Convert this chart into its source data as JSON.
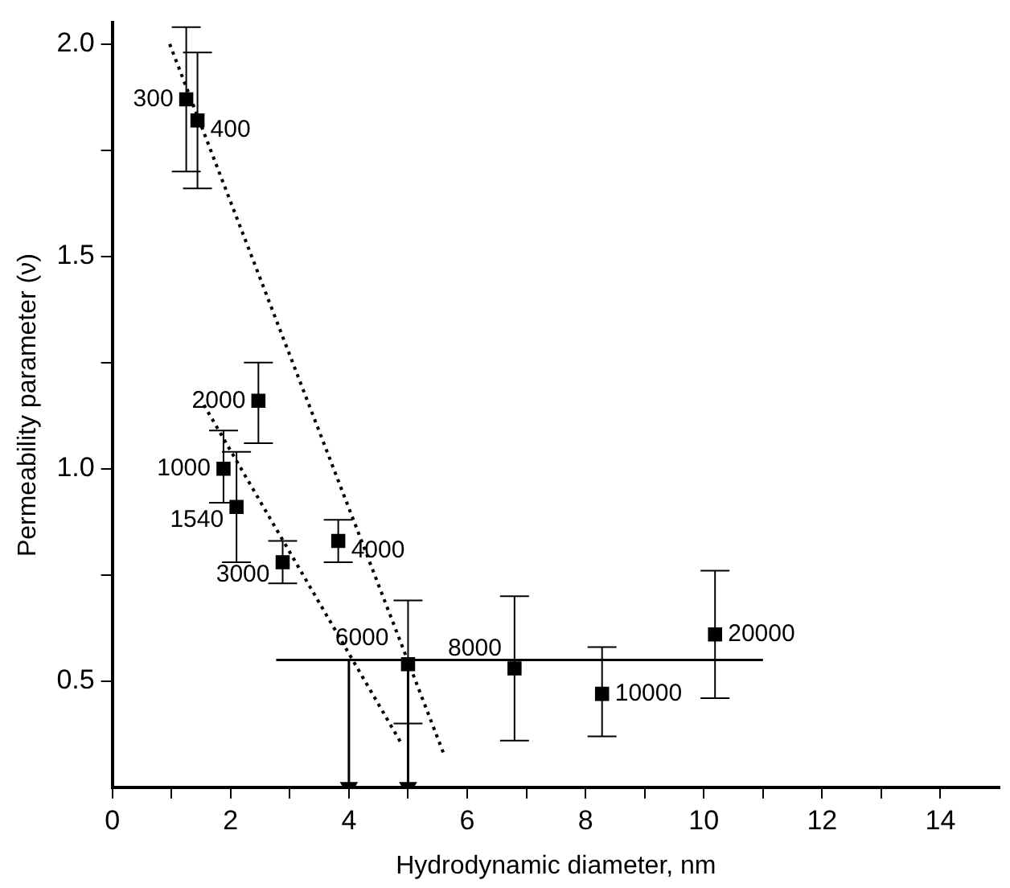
{
  "chart_data": {
    "type": "scatter",
    "xlabel": "Hydrodynamic diameter, nm",
    "ylabel": "Permeability parameter (ν)",
    "xlim": [
      0,
      15
    ],
    "ylim": [
      0.25,
      2.05
    ],
    "xticks": [
      0,
      {
        "value": 1,
        "label": null
      },
      2,
      {
        "value": 3,
        "label": null
      },
      4,
      {
        "value": 5,
        "label": null
      },
      6,
      {
        "value": 7,
        "label": null
      },
      8,
      {
        "value": 9,
        "label": null
      },
      10,
      {
        "value": 11,
        "label": null
      },
      12,
      {
        "value": 13,
        "label": null
      },
      14
    ],
    "yticks": [
      0.5,
      {
        "value": 0.75,
        "label": null
      },
      {
        "value": 1,
        "label": "1.0"
      },
      {
        "value": 1.25,
        "label": null
      },
      1.5,
      {
        "value": 1.75,
        "label": null
      },
      {
        "value": 2,
        "label": "2.0"
      }
    ],
    "grid": false,
    "legend": false,
    "marker": "square",
    "series": [
      {
        "color": "#000000",
        "x": [
          1.25,
          1.44,
          2.47,
          1.88,
          2.1,
          2.88,
          3.82,
          5.0,
          6.8,
          8.28,
          10.19
        ],
        "values": [
          1.87,
          1.82,
          1.16,
          1.0,
          0.91,
          0.78,
          0.83,
          0.54,
          0.53,
          0.47,
          0.61
        ],
        "errors": [
          [
            1.7,
            2.04
          ],
          [
            1.66,
            1.98
          ],
          [
            1.06,
            1.25
          ],
          [
            0.92,
            1.09
          ],
          [
            0.78,
            1.04
          ],
          [
            0.73,
            0.83
          ],
          [
            0.78,
            0.88
          ],
          [
            0.4,
            0.69
          ],
          [
            0.36,
            0.7
          ],
          [
            0.37,
            0.58
          ],
          [
            0.46,
            0.76
          ]
        ]
      },
      {
        "type": "line",
        "color": "#000000",
        "x": [
          0.97,
          5.6
        ],
        "values": [
          2.0,
          0.33
        ],
        "line_style": "dotted",
        "marker": "none"
      },
      {
        "type": "line",
        "color": "#000000",
        "x": [
          1.55,
          4.9
        ],
        "values": [
          1.15,
          0.35
        ],
        "line_style": "dotted",
        "marker": "none"
      },
      {
        "type": "line",
        "color": "#000000",
        "x": [
          2.77,
          11.0
        ],
        "values": [
          0.55,
          0.55
        ],
        "line_style": "solid",
        "marker": "none"
      },
      {
        "type": "line",
        "color": "#000000",
        "x": [
          4,
          4
        ],
        "values": [
          0.55,
          0.25
        ],
        "line_style": "solid",
        "marker": "triangle"
      },
      {
        "type": "line",
        "color": "#000000",
        "x": [
          5,
          5
        ],
        "values": [
          0.55,
          0.25
        ],
        "line_style": "solid",
        "marker": "triangle"
      }
    ],
    "annotations": [
      {
        "text": "300",
        "x": 1.25,
        "y": 1.87
      },
      {
        "text": "400",
        "x": 1.44,
        "y": 1.82
      },
      {
        "text": "2000",
        "x": 2.47,
        "y": 1.16
      },
      {
        "text": "1000",
        "x": 1.88,
        "y": 1.0
      },
      {
        "text": "1540",
        "x": 2.1,
        "y": 0.91
      },
      {
        "text": "3000",
        "x": 2.88,
        "y": 0.78
      },
      {
        "text": "4000",
        "x": 3.82,
        "y": 0.83
      },
      {
        "text": "6000",
        "x": 5.0,
        "y": 0.54
      },
      {
        "text": "8000",
        "x": 6.8,
        "y": 0.53
      },
      {
        "text": "10000",
        "x": 8.28,
        "y": 0.47
      },
      {
        "text": "20000",
        "x": 10.19,
        "y": 0.61
      }
    ]
  }
}
